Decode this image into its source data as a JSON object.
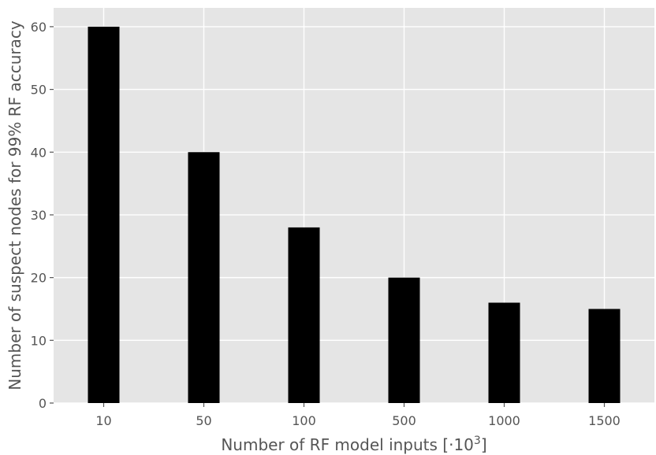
{
  "chart_data": {
    "type": "bar",
    "title": "",
    "xlabel_main": "Number of RF model inputs [·10",
    "xlabel_sup": "3",
    "xlabel_end": "]",
    "ylabel": "Number of suspect nodes for 99% RF accuracy",
    "categories": [
      "10",
      "50",
      "100",
      "500",
      "1000",
      "1500"
    ],
    "values": [
      60,
      40,
      28,
      20,
      16,
      15
    ],
    "ylim": [
      0,
      63
    ],
    "yticks": [
      0,
      10,
      20,
      30,
      40,
      50,
      60
    ],
    "grid": true,
    "legend": "none",
    "colors": {
      "bar": "#000000",
      "plot_background": "#e5e5e5",
      "grid": "#ffffff",
      "text": "#555555"
    }
  }
}
